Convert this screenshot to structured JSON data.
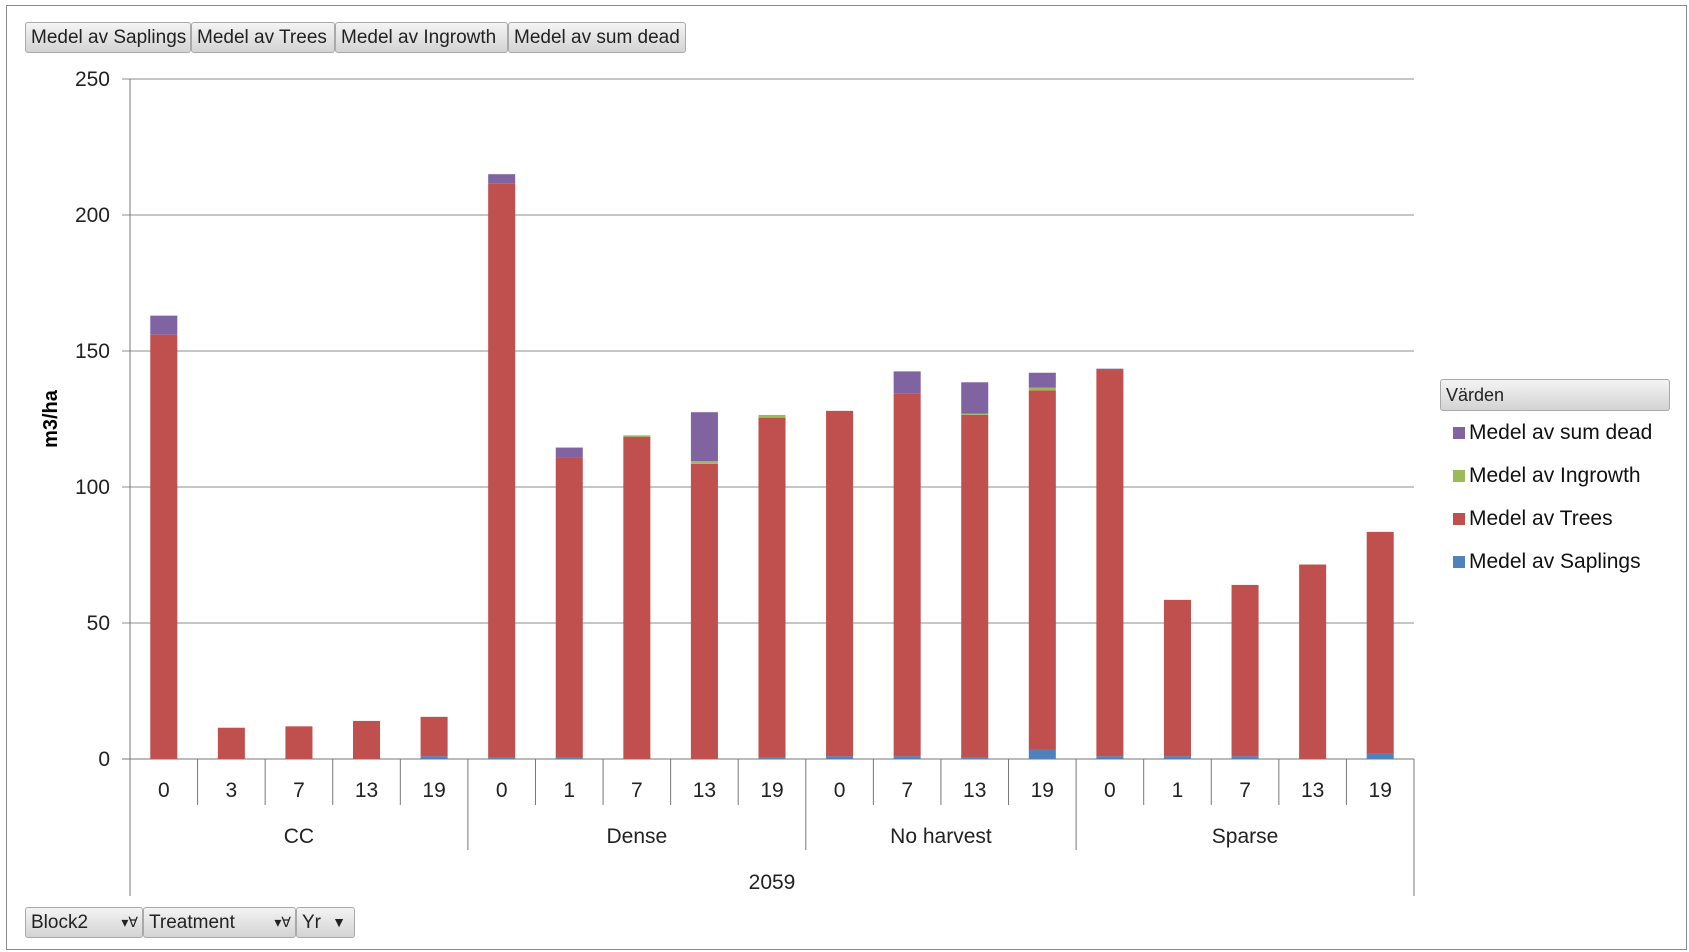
{
  "series_buttons": [
    "Medel av Saplings",
    "Medel av Trees",
    "Medel av Ingrowth",
    "Medel av sum dead"
  ],
  "axis_buttons": [
    {
      "label": "Block2",
      "icon": "filter-dropdown-icon"
    },
    {
      "label": "Treatment",
      "icon": "filter-dropdown-icon"
    },
    {
      "label": "Yr",
      "icon": "dropdown-arrow-icon"
    }
  ],
  "legend": {
    "title": "Värden",
    "items": [
      {
        "name": "Medel av sum dead",
        "color": "#8064a2"
      },
      {
        "name": "Medel av Ingrowth",
        "color": "#9bbb59"
      },
      {
        "name": "Medel av Trees",
        "color": "#c0504d"
      },
      {
        "name": "Medel av Saplings",
        "color": "#4f81bd"
      }
    ]
  },
  "chart_data": {
    "type": "bar",
    "stacked": true,
    "ylabel": "m3/ha",
    "ylim": [
      0,
      250
    ],
    "yticks": [
      0,
      50,
      100,
      150,
      200,
      250
    ],
    "grid": true,
    "legend_position": "right",
    "outer_category": "2059",
    "groups": [
      {
        "name": "CC",
        "years": [
          "0",
          "3",
          "7",
          "13",
          "19"
        ]
      },
      {
        "name": "Dense",
        "years": [
          "0",
          "1",
          "7",
          "13",
          "19"
        ]
      },
      {
        "name": "No harvest",
        "years": [
          "0",
          "7",
          "13",
          "19"
        ]
      },
      {
        "name": "Sparse",
        "years": [
          "0",
          "1",
          "7",
          "13",
          "19"
        ]
      }
    ],
    "series": [
      {
        "name": "Medel av Saplings",
        "color": "#4f81bd",
        "values": [
          0,
          0,
          0,
          0,
          1,
          0.5,
          0.5,
          0,
          0,
          0.5,
          1,
          1,
          0.5,
          3.5,
          1,
          1,
          1,
          0,
          2
        ]
      },
      {
        "name": "Medel av Trees",
        "color": "#c0504d",
        "values": [
          156,
          11.5,
          12,
          14,
          14.5,
          211,
          110.5,
          118.5,
          108.5,
          125,
          127,
          133.5,
          126,
          132,
          142,
          57.5,
          63,
          71.5,
          81.5
        ]
      },
      {
        "name": "Medel av Ingrowth",
        "color": "#9bbb59",
        "values": [
          0,
          0,
          0,
          0,
          0,
          0,
          0,
          0.5,
          1,
          1,
          0,
          0,
          0.5,
          1,
          0,
          0,
          0,
          0,
          0
        ]
      },
      {
        "name": "Medel av sum dead",
        "color": "#8064a2",
        "values": [
          7,
          0,
          0,
          0,
          0,
          3.5,
          3.5,
          0,
          18,
          0,
          0,
          8,
          11.5,
          5.5,
          0.5,
          0,
          0,
          0,
          0
        ]
      }
    ]
  }
}
